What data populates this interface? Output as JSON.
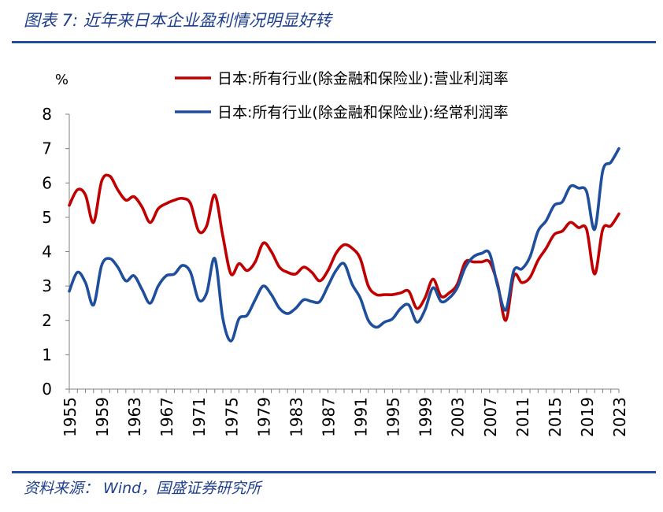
{
  "figure": {
    "title": "图表 7:  近年来日本企业盈利情况明显好转",
    "source": "资料来源： Wind，国盛证券研究所"
  },
  "colors": {
    "red": "#c00000",
    "blue": "#1f4e9c",
    "rule": "#1f4e9c",
    "title": "#1f3f8c"
  },
  "chart_data": {
    "type": "line",
    "ylabel": "%",
    "ylim": [
      0,
      8
    ],
    "yticks": [
      "0",
      "1",
      "2",
      "3",
      "4",
      "5",
      "6",
      "7",
      "8"
    ],
    "x_ticks": [
      "1955",
      "1959",
      "1963",
      "1967",
      "1971",
      "1975",
      "1979",
      "1983",
      "1987",
      "1991",
      "1995",
      "1999",
      "2003",
      "2007",
      "2011",
      "2015",
      "2019",
      "2023"
    ],
    "x": [
      1955,
      1956,
      1957,
      1958,
      1959,
      1960,
      1961,
      1962,
      1963,
      1964,
      1965,
      1966,
      1967,
      1968,
      1969,
      1970,
      1971,
      1972,
      1973,
      1974,
      1975,
      1976,
      1977,
      1978,
      1979,
      1980,
      1981,
      1982,
      1983,
      1984,
      1985,
      1986,
      1987,
      1988,
      1989,
      1990,
      1991,
      1992,
      1993,
      1994,
      1995,
      1996,
      1997,
      1998,
      1999,
      2000,
      2001,
      2002,
      2003,
      2004,
      2005,
      2006,
      2007,
      2008,
      2009,
      2010,
      2011,
      2012,
      2013,
      2014,
      2015,
      2016,
      2017,
      2018,
      2019,
      2020,
      2021,
      2022,
      2023
    ],
    "series": [
      {
        "name": "日本:所有行业(除金融和保险业):营业利润率",
        "color": "red",
        "values": [
          5.35,
          5.8,
          5.65,
          4.85,
          6.05,
          6.2,
          5.8,
          5.5,
          5.6,
          5.3,
          4.85,
          5.25,
          5.4,
          5.5,
          5.55,
          5.4,
          4.6,
          4.75,
          5.65,
          4.45,
          3.35,
          3.65,
          3.45,
          3.7,
          4.25,
          4.0,
          3.55,
          3.4,
          3.35,
          3.55,
          3.4,
          3.15,
          3.45,
          3.95,
          4.2,
          4.1,
          3.8,
          3.0,
          2.75,
          2.75,
          2.75,
          2.8,
          2.85,
          2.35,
          2.65,
          3.2,
          2.7,
          2.8,
          3.05,
          3.7,
          3.7,
          3.7,
          3.7,
          3.05,
          2.0,
          3.3,
          3.1,
          3.25,
          3.75,
          4.1,
          4.5,
          4.6,
          4.85,
          4.7,
          4.65,
          3.35,
          4.65,
          4.75,
          5.1
        ]
      },
      {
        "name": "日本:所有行业(除金融和保险业):经常利润率",
        "color": "blue",
        "values": [
          2.85,
          3.4,
          3.1,
          2.45,
          3.6,
          3.8,
          3.55,
          3.15,
          3.3,
          2.9,
          2.5,
          3.0,
          3.3,
          3.35,
          3.6,
          3.4,
          2.6,
          2.8,
          3.8,
          2.05,
          1.4,
          2.05,
          2.15,
          2.6,
          3.0,
          2.75,
          2.35,
          2.2,
          2.35,
          2.6,
          2.55,
          2.55,
          3.0,
          3.45,
          3.65,
          3.05,
          2.65,
          2.0,
          1.8,
          1.95,
          2.05,
          2.35,
          2.45,
          1.95,
          2.3,
          2.95,
          2.55,
          2.65,
          2.95,
          3.55,
          3.85,
          3.95,
          3.95,
          3.0,
          2.3,
          3.45,
          3.5,
          3.85,
          4.6,
          4.9,
          5.35,
          5.45,
          5.9,
          5.85,
          5.75,
          4.65,
          6.35,
          6.6,
          7.0
        ]
      }
    ]
  }
}
